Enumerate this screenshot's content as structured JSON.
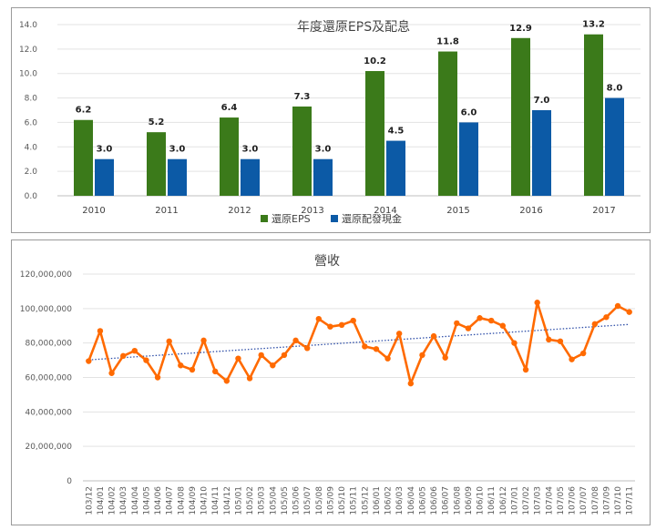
{
  "chart_data": [
    {
      "type": "bar",
      "title": "年度還原EPS及配息",
      "categories": [
        "2010",
        "2011",
        "2012",
        "2013",
        "2014",
        "2015",
        "2016",
        "2017"
      ],
      "series": [
        {
          "name": "還原EPS",
          "values": [
            6.2,
            5.2,
            6.4,
            7.3,
            10.2,
            11.8,
            12.9,
            13.2
          ],
          "color": "#3b7a1a"
        },
        {
          "name": "還原配發現金",
          "values": [
            3.0,
            3.0,
            3.0,
            3.0,
            4.5,
            6.0,
            7.0,
            8.0
          ],
          "color": "#0c5aa6"
        }
      ],
      "yticks": [
        "0.0",
        "2.0",
        "4.0",
        "6.0",
        "8.0",
        "10.0",
        "12.0",
        "14.0"
      ],
      "ylim": [
        0,
        14
      ],
      "data_labels": true,
      "legend": "bottom",
      "grid": true
    },
    {
      "type": "line",
      "title": "營收",
      "x": [
        "103/12",
        "104/01",
        "104/02",
        "104/03",
        "104/04",
        "104/05",
        "104/06",
        "104/07",
        "104/08",
        "104/09",
        "104/10",
        "104/11",
        "104/12",
        "105/01",
        "105/02",
        "105/03",
        "105/04",
        "105/05",
        "105/06",
        "105/07",
        "105/08",
        "105/09",
        "105/10",
        "105/11",
        "105/12",
        "106/01",
        "106/02",
        "106/03",
        "106/04",
        "106/05",
        "106/06",
        "106/07",
        "106/08",
        "106/09",
        "106/10",
        "106/11",
        "106/12",
        "107/01",
        "107/02",
        "107/03",
        "107/04",
        "107/05",
        "107/06",
        "107/07",
        "107/08",
        "107/09",
        "107/10",
        "107/11"
      ],
      "series": [
        {
          "values": [
            69500000,
            87000000,
            62500000,
            72500000,
            75500000,
            70000000,
            60000000,
            81000000,
            67000000,
            64500000,
            81500000,
            63500000,
            58000000,
            71000000,
            59500000,
            73000000,
            67000000,
            73000000,
            81500000,
            77000000,
            94000000,
            89500000,
            90500000,
            93000000,
            78000000,
            76500000,
            71000000,
            85500000,
            56500000,
            73000000,
            84000000,
            71500000,
            91500000,
            88500000,
            94500000,
            93000000,
            90000000,
            80000000,
            64500000,
            103500000,
            82000000,
            81000000,
            70500000,
            74000000,
            91000000,
            95000000,
            101500000,
            98000000
          ],
          "color": "#ff6a00"
        }
      ],
      "trendline": {
        "start": 70200000,
        "end": 90800000,
        "style": "dotted",
        "color": "#2f4fa8"
      },
      "yticks": [
        "0",
        "20,000,000",
        "40,000,000",
        "60,000,000",
        "80,000,000",
        "100,000,000",
        "120,000,000"
      ],
      "ylim": [
        0,
        120000000
      ],
      "grid": true
    }
  ]
}
